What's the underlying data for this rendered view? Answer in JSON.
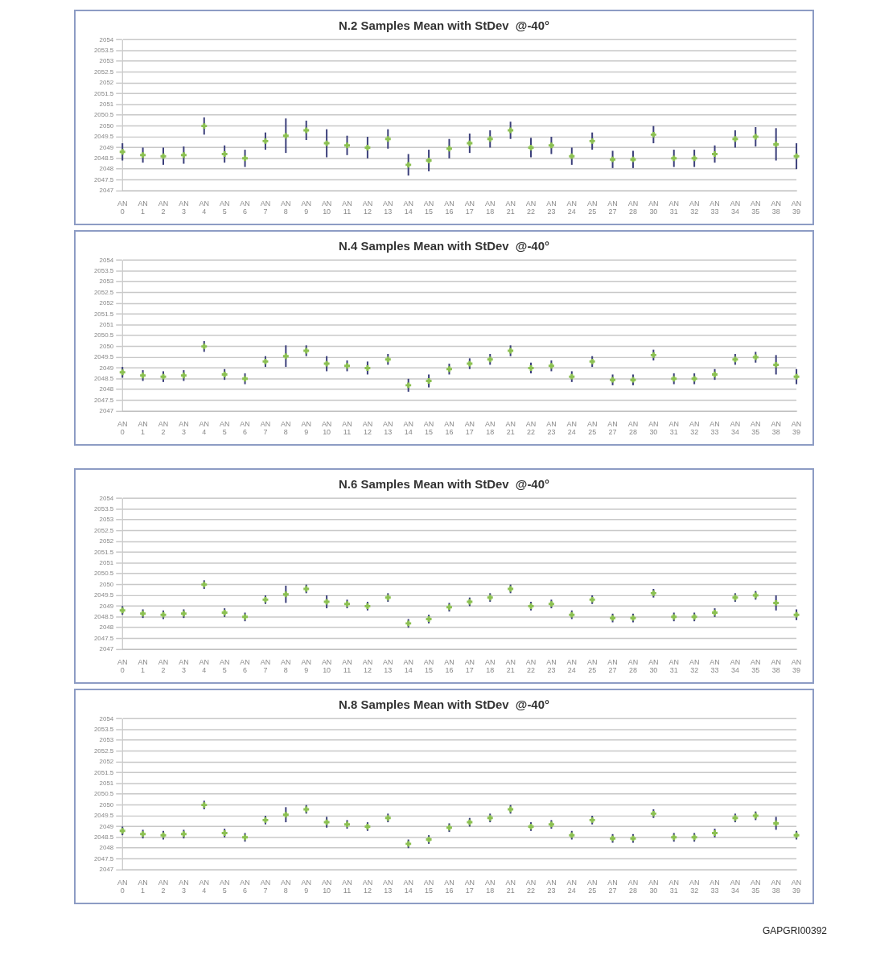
{
  "chart_data": [
    {
      "type": "scatter",
      "title": "N.2 Samples Mean with StDev  @-40°",
      "categories": [
        "AN 0",
        "AN 1",
        "AN 2",
        "AN 3",
        "AN 4",
        "AN 5",
        "AN 6",
        "AN 7",
        "AN 8",
        "AN 9",
        "AN 10",
        "AN 11",
        "AN 12",
        "AN 13",
        "AN 14",
        "AN 15",
        "AN 16",
        "AN 17",
        "AN 18",
        "AN 21",
        "AN 22",
        "AN 23",
        "AN 24",
        "AN 25",
        "AN 27",
        "AN 28",
        "AN 30",
        "AN 31",
        "AN 32",
        "AN 33",
        "AN 34",
        "AN 35",
        "AN 38",
        "AN 39"
      ],
      "values": [
        2048.8,
        2048.65,
        2048.6,
        2048.65,
        2050.0,
        2048.7,
        2048.5,
        2049.3,
        2049.55,
        2049.8,
        2049.2,
        2049.1,
        2049.0,
        2049.4,
        2048.2,
        2048.4,
        2048.95,
        2049.2,
        2049.4,
        2049.8,
        2049.0,
        2049.1,
        2048.6,
        2049.3,
        2048.45,
        2048.45,
        2049.6,
        2048.5,
        2048.5,
        2048.7,
        2049.4,
        2049.5,
        2049.15,
        2048.6
      ],
      "errors": [
        0.4,
        0.35,
        0.4,
        0.4,
        0.4,
        0.4,
        0.4,
        0.4,
        0.8,
        0.45,
        0.65,
        0.45,
        0.5,
        0.45,
        0.5,
        0.5,
        0.45,
        0.45,
        0.4,
        0.4,
        0.45,
        0.4,
        0.4,
        0.4,
        0.4,
        0.4,
        0.4,
        0.4,
        0.4,
        0.4,
        0.4,
        0.45,
        0.75,
        0.6
      ],
      "color": "#8cc152",
      "marker": "cross",
      "ylim": [
        2047,
        2054
      ],
      "yticks": [
        2047,
        2047.5,
        2048,
        2048.5,
        2049,
        2049.5,
        2050,
        2050.5,
        2051,
        2051.5,
        2052,
        2052.5,
        2053,
        2053.5,
        2054
      ],
      "grid": "y",
      "legend": false
    },
    {
      "type": "scatter",
      "title": "N.4 Samples Mean with StDev  @-40°",
      "categories": [
        "AN 0",
        "AN 1",
        "AN 2",
        "AN 3",
        "AN 4",
        "AN 5",
        "AN 6",
        "AN 7",
        "AN 8",
        "AN 9",
        "AN 10",
        "AN 11",
        "AN 12",
        "AN 13",
        "AN 14",
        "AN 15",
        "AN 16",
        "AN 17",
        "AN 18",
        "AN 21",
        "AN 22",
        "AN 23",
        "AN 24",
        "AN 25",
        "AN 27",
        "AN 28",
        "AN 30",
        "AN 31",
        "AN 32",
        "AN 33",
        "AN 34",
        "AN 35",
        "AN 38",
        "AN 39"
      ],
      "values": [
        2048.8,
        2048.65,
        2048.6,
        2048.65,
        2050.0,
        2048.7,
        2048.5,
        2049.3,
        2049.55,
        2049.8,
        2049.2,
        2049.1,
        2049.0,
        2049.4,
        2048.2,
        2048.4,
        2048.95,
        2049.2,
        2049.4,
        2049.8,
        2049.0,
        2049.1,
        2048.6,
        2049.3,
        2048.45,
        2048.45,
        2049.6,
        2048.5,
        2048.5,
        2048.7,
        2049.4,
        2049.5,
        2049.15,
        2048.6
      ],
      "errors": [
        0.25,
        0.25,
        0.25,
        0.25,
        0.25,
        0.25,
        0.25,
        0.25,
        0.5,
        0.25,
        0.35,
        0.25,
        0.3,
        0.25,
        0.3,
        0.3,
        0.25,
        0.25,
        0.25,
        0.25,
        0.25,
        0.25,
        0.25,
        0.25,
        0.25,
        0.25,
        0.25,
        0.25,
        0.25,
        0.25,
        0.25,
        0.25,
        0.45,
        0.35
      ],
      "color": "#8cc152",
      "marker": "cross",
      "ylim": [
        2047,
        2054
      ],
      "yticks": [
        2047,
        2047.5,
        2048,
        2048.5,
        2049,
        2049.5,
        2050,
        2050.5,
        2051,
        2051.5,
        2052,
        2052.5,
        2053,
        2053.5,
        2054
      ],
      "grid": "y",
      "legend": false
    },
    {
      "type": "scatter",
      "title": "N.6 Samples Mean with StDev  @-40°",
      "categories": [
        "AN 0",
        "AN 1",
        "AN 2",
        "AN 3",
        "AN 4",
        "AN 5",
        "AN 6",
        "AN 7",
        "AN 8",
        "AN 9",
        "AN 10",
        "AN 11",
        "AN 12",
        "AN 13",
        "AN 14",
        "AN 15",
        "AN 16",
        "AN 17",
        "AN 18",
        "AN 21",
        "AN 22",
        "AN 23",
        "AN 24",
        "AN 25",
        "AN 27",
        "AN 28",
        "AN 30",
        "AN 31",
        "AN 32",
        "AN 33",
        "AN 34",
        "AN 35",
        "AN 38",
        "AN 39"
      ],
      "values": [
        2048.8,
        2048.65,
        2048.6,
        2048.65,
        2050.0,
        2048.7,
        2048.5,
        2049.3,
        2049.55,
        2049.8,
        2049.2,
        2049.1,
        2049.0,
        2049.4,
        2048.2,
        2048.4,
        2048.95,
        2049.2,
        2049.4,
        2049.8,
        2049.0,
        2049.1,
        2048.6,
        2049.3,
        2048.45,
        2048.45,
        2049.6,
        2048.5,
        2048.5,
        2048.7,
        2049.4,
        2049.5,
        2049.15,
        2048.6
      ],
      "errors": [
        0.2,
        0.2,
        0.2,
        0.2,
        0.2,
        0.2,
        0.2,
        0.2,
        0.4,
        0.2,
        0.3,
        0.2,
        0.2,
        0.2,
        0.2,
        0.2,
        0.2,
        0.2,
        0.2,
        0.2,
        0.2,
        0.2,
        0.2,
        0.2,
        0.2,
        0.2,
        0.2,
        0.2,
        0.2,
        0.2,
        0.2,
        0.2,
        0.35,
        0.25
      ],
      "color": "#8cc152",
      "marker": "cross",
      "ylim": [
        2047,
        2054
      ],
      "yticks": [
        2047,
        2047.5,
        2048,
        2048.5,
        2049,
        2049.5,
        2050,
        2050.5,
        2051,
        2051.5,
        2052,
        2052.5,
        2053,
        2053.5,
        2054
      ],
      "grid": "y",
      "legend": false
    },
    {
      "type": "scatter",
      "title": "N.8 Samples Mean with StDev  @-40°",
      "categories": [
        "AN 0",
        "AN 1",
        "AN 2",
        "AN 3",
        "AN 4",
        "AN 5",
        "AN 6",
        "AN 7",
        "AN 8",
        "AN 9",
        "AN 10",
        "AN 11",
        "AN 12",
        "AN 13",
        "AN 14",
        "AN 15",
        "AN 16",
        "AN 17",
        "AN 18",
        "AN 21",
        "AN 22",
        "AN 23",
        "AN 24",
        "AN 25",
        "AN 27",
        "AN 28",
        "AN 30",
        "AN 31",
        "AN 32",
        "AN 33",
        "AN 34",
        "AN 35",
        "AN 38",
        "AN 39"
      ],
      "values": [
        2048.8,
        2048.65,
        2048.6,
        2048.65,
        2050.0,
        2048.7,
        2048.5,
        2049.3,
        2049.55,
        2049.8,
        2049.2,
        2049.1,
        2049.0,
        2049.4,
        2048.2,
        2048.4,
        2048.95,
        2049.2,
        2049.4,
        2049.8,
        2049.0,
        2049.1,
        2048.6,
        2049.3,
        2048.45,
        2048.45,
        2049.6,
        2048.5,
        2048.5,
        2048.7,
        2049.4,
        2049.5,
        2049.15,
        2048.6
      ],
      "errors": [
        0.2,
        0.2,
        0.2,
        0.2,
        0.2,
        0.2,
        0.2,
        0.2,
        0.35,
        0.2,
        0.25,
        0.2,
        0.2,
        0.2,
        0.2,
        0.2,
        0.2,
        0.2,
        0.2,
        0.2,
        0.2,
        0.2,
        0.2,
        0.2,
        0.2,
        0.2,
        0.2,
        0.2,
        0.2,
        0.2,
        0.2,
        0.2,
        0.3,
        0.2
      ],
      "color": "#8cc152",
      "marker": "cross",
      "ylim": [
        2047,
        2054
      ],
      "yticks": [
        2047,
        2047.5,
        2048,
        2048.5,
        2049,
        2049.5,
        2050,
        2050.5,
        2051,
        2051.5,
        2052,
        2052.5,
        2053,
        2053.5,
        2054
      ],
      "grid": "y",
      "legend": false,
      "annotations": [
        "GAPGRI00392"
      ]
    }
  ]
}
